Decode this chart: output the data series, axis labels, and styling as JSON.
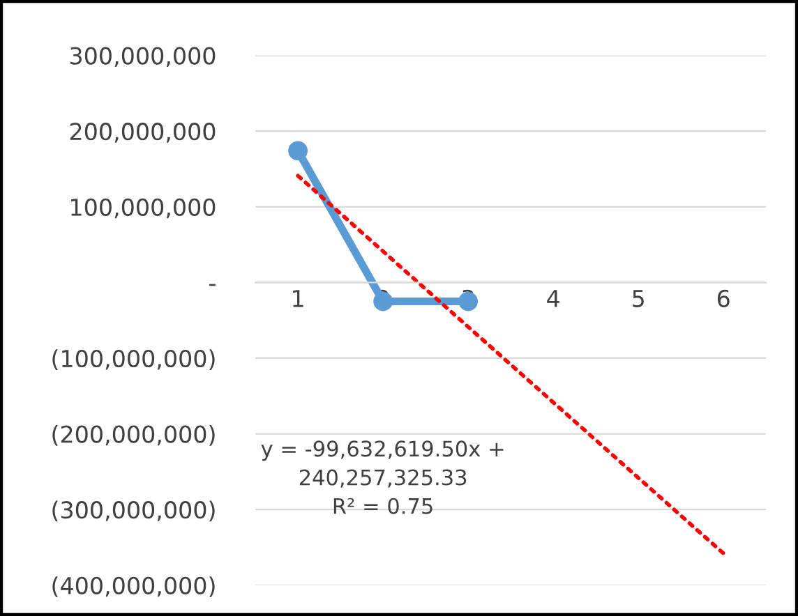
{
  "chart_data": {
    "type": "line",
    "xlim": [
      0.5,
      6.5
    ],
    "xticks": [
      1,
      2,
      3,
      4,
      5,
      6
    ],
    "ylim": [
      -400000000,
      300000000
    ],
    "yticks": [
      {
        "value": -400000000,
        "label": "(400,000,000)"
      },
      {
        "value": -300000000,
        "label": "(300,000,000)"
      },
      {
        "value": -200000000,
        "label": "(200,000,000)"
      },
      {
        "value": -100000000,
        "label": "(100,000,000)"
      },
      {
        "value": 0,
        "label": "-"
      },
      {
        "value": 100000000,
        "label": "100,000,000"
      },
      {
        "value": 200000000,
        "label": "200,000,000"
      },
      {
        "value": 300000000,
        "label": "300,000,000"
      }
    ],
    "grid": "y",
    "legend": false,
    "series": [
      {
        "x": [
          1,
          2,
          3
        ],
        "values": [
          174000000,
          -25000000,
          -25000000
        ],
        "color": "#5b9bd5",
        "marker": "circle",
        "line_style": "solid"
      },
      {
        "x": [
          1,
          6
        ],
        "values": [
          141000000,
          -358000000
        ],
        "color": "#ff0000",
        "marker": "none",
        "line_style": "dotted"
      }
    ],
    "annotations": [
      "y = -99,632,619.50x +\n240,257,325.33\nR² = 0.75"
    ]
  }
}
